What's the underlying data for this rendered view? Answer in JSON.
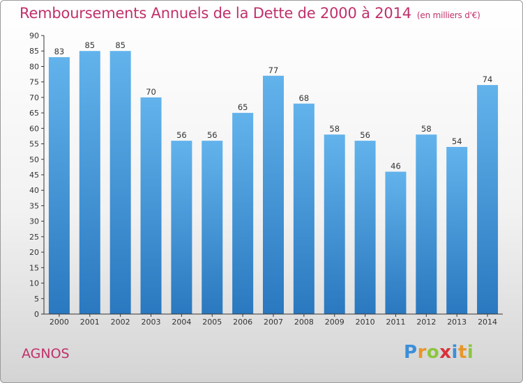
{
  "chart_data": {
    "type": "bar",
    "title": "Remboursements Annuels de la Dette de 2000 à 2014",
    "subtitle": "(en milliers d'€)",
    "categories": [
      "2000",
      "2001",
      "2002",
      "2003",
      "2004",
      "2005",
      "2006",
      "2007",
      "2008",
      "2009",
      "2010",
      "2011",
      "2012",
      "2013",
      "2014"
    ],
    "values": [
      83,
      85,
      85,
      70,
      56,
      56,
      65,
      77,
      68,
      58,
      56,
      46,
      58,
      54,
      74
    ],
    "ylim": [
      0,
      90
    ],
    "ytick_step": 5,
    "xlabel": "",
    "ylabel": "",
    "grid": false
  },
  "commune": "AGNOS",
  "logo": {
    "letters": [
      "P",
      "r",
      "o",
      "x",
      "i",
      "t",
      "i"
    ],
    "colors": [
      "#3a8fd8",
      "#e8962a",
      "#8cc63f",
      "#d8323a",
      "#3a8fd8",
      "#e8962a",
      "#8cc63f"
    ]
  },
  "colors": {
    "bar_light": "#5fb0ea",
    "bar_dark": "#2a78bf",
    "title": "#c0306a"
  }
}
